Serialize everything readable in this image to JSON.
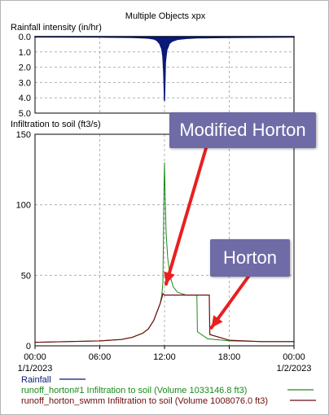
{
  "window_title": "Multiple Objects xpx",
  "colors": {
    "rainfall": "#0a1a78",
    "modified_horton": "#1a8a1a",
    "horton": "#6e0d0d",
    "annotation_box": "#6f6ba6",
    "annotation_arrow": "#e82020"
  },
  "chart_data": [
    {
      "type": "area",
      "ylabel": "Rainfall intensity (in/hr)",
      "ylim": [
        0,
        5
      ],
      "y_inverted": true,
      "y_ticks": [
        "0.0",
        "1.0",
        "2.0",
        "3.0",
        "4.0",
        "5.0"
      ],
      "grid": true,
      "series": [
        {
          "name": "Rainfall",
          "x_hours": [
            0,
            6,
            9,
            10,
            10.5,
            11,
            11.3,
            11.55,
            11.75,
            11.85,
            11.92,
            11.97,
            12.0,
            12.03,
            12.08,
            12.2,
            12.45,
            12.7,
            13.2,
            14,
            15,
            18,
            24
          ],
          "values": [
            0.02,
            0.03,
            0.05,
            0.08,
            0.1,
            0.15,
            0.25,
            0.45,
            0.8,
            1.3,
            2.2,
            3.3,
            4.2,
            3.2,
            1.7,
            0.9,
            0.45,
            0.3,
            0.18,
            0.12,
            0.08,
            0.05,
            0.03
          ]
        }
      ]
    },
    {
      "type": "line",
      "ylabel": "Infiltration to soil (ft3/s)",
      "ylim": [
        0,
        150
      ],
      "y_ticks": [
        "0",
        "50",
        "100",
        "150"
      ],
      "grid": true,
      "x_ticks": [
        {
          "time": "00:00",
          "date": "1/1/2023"
        },
        {
          "time": "06:00",
          "date": ""
        },
        {
          "time": "12:00",
          "date": ""
        },
        {
          "time": "18:00",
          "date": ""
        },
        {
          "time": "00:00",
          "date": "1/2/2023"
        }
      ],
      "series": [
        {
          "name": "runoff_horton#1 Infiltration to soil (Volume 1033146.8 ft3)",
          "x_hours": [
            0,
            3,
            6,
            8,
            9,
            10,
            10.5,
            11,
            11.3,
            11.6,
            11.75,
            11.85,
            11.9,
            11.95,
            12.0,
            12.05,
            12.15,
            12.3,
            12.5,
            12.8,
            13.2,
            14,
            15,
            15.05,
            16,
            18,
            21,
            24
          ],
          "values": [
            2.5,
            3,
            3.5,
            4.5,
            6,
            9,
            12,
            18,
            24,
            30,
            36,
            45,
            75,
            110,
            130,
            110,
            80,
            62,
            50,
            42,
            38,
            36,
            36,
            10,
            5,
            3.5,
            3,
            3
          ]
        },
        {
          "name": "runoff_horton_swmm Infiltration to soil (Volume 1008076.0 ft3)",
          "x_hours": [
            0,
            3,
            6,
            8,
            9,
            10,
            10.5,
            11,
            11.3,
            11.6,
            11.75,
            11.85,
            12.0,
            12.3,
            12.8,
            13.5,
            14.5,
            15.5,
            16.15,
            16.2,
            18,
            21,
            24
          ],
          "values": [
            2.5,
            3,
            3.5,
            4.5,
            6,
            9,
            12,
            18,
            24,
            30,
            34,
            37,
            36,
            36,
            36,
            36,
            36,
            36,
            36,
            8,
            4,
            3,
            3
          ]
        }
      ]
    }
  ],
  "annotations": [
    {
      "label": "Modified Horton",
      "target_hours": 12.0,
      "target_value": 45
    },
    {
      "label": "Horton",
      "target_hours": 16.2,
      "target_value": 14
    }
  ]
}
